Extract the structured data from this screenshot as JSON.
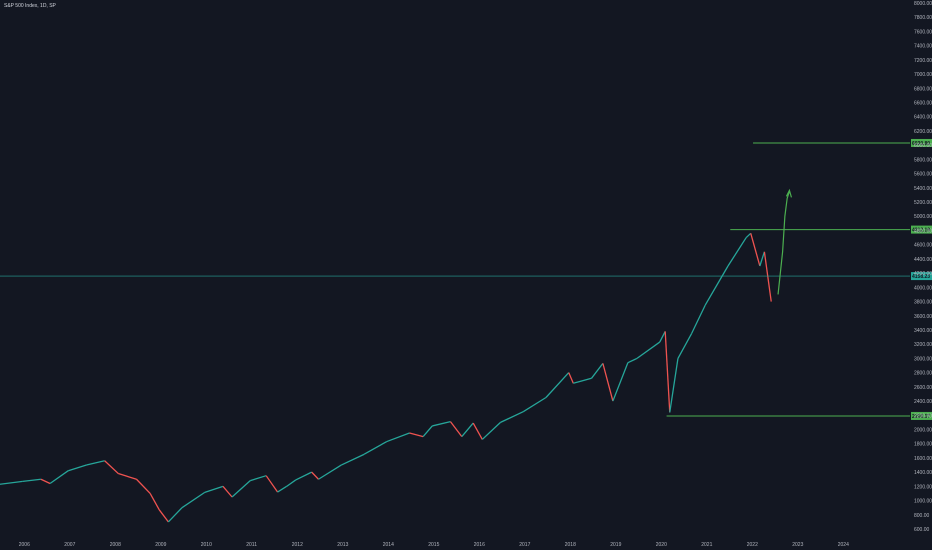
{
  "chart_title": "S&P 500 Index, 1D, SP",
  "colors": {
    "background": "#131722",
    "up": "#26a69a",
    "down": "#ef5350",
    "level_line": "#4caf50",
    "current_line": "#26a69a",
    "arrow": "#4caf50",
    "axis_text": "#b2b5be"
  },
  "chart_data": {
    "type": "line",
    "title": "S&P 500 Index, 1D, SP",
    "xlim": [
      2005.5,
      2025.5
    ],
    "ylim": [
      600,
      8000
    ],
    "y_ticks": [
      600,
      800,
      1000,
      1200,
      1400,
      1600,
      1800,
      2000,
      2200,
      2400,
      2600,
      2800,
      3000,
      3200,
      3400,
      3600,
      3800,
      4000,
      4200,
      4400,
      4600,
      4800,
      5000,
      5200,
      5400,
      5600,
      5800,
      6000,
      6200,
      6400,
      6600,
      6800,
      7000,
      7200,
      7400,
      7600,
      7800,
      8000
    ],
    "x_ticks": [
      "2006",
      "2007",
      "2008",
      "2009",
      "2010",
      "2011",
      "2012",
      "2013",
      "2014",
      "2015",
      "2016",
      "2017",
      "2018",
      "2019",
      "2020",
      "2021",
      "2022",
      "2023",
      "2024"
    ],
    "series": [
      {
        "x": [
          2005.5,
          2006.0,
          2006.4,
          2006.6,
          2007.0,
          2007.4,
          2007.8,
          2008.1,
          2008.5,
          2008.8,
          2009.0,
          2009.2,
          2009.5,
          2010.0,
          2010.4,
          2010.6,
          2011.0,
          2011.35,
          2011.6,
          2011.8,
          2012.0,
          2012.35,
          2012.5,
          2013.0,
          2013.5,
          2014.0,
          2014.5,
          2014.8,
          2015.0,
          2015.4,
          2015.65,
          2015.9,
          2016.1,
          2016.5,
          2017.0,
          2017.5,
          2018.0,
          2018.1,
          2018.5,
          2018.75,
          2018.97,
          2019.3,
          2019.5,
          2020.0,
          2020.12,
          2020.22,
          2020.4,
          2020.7,
          2021.0,
          2021.5,
          2021.9,
          2022.0,
          2022.2,
          2022.3,
          2022.45
        ],
        "y": [
          1230,
          1270,
          1300,
          1240,
          1420,
          1500,
          1560,
          1380,
          1300,
          1100,
          870,
          700,
          900,
          1115,
          1200,
          1050,
          1280,
          1350,
          1120,
          1200,
          1290,
          1400,
          1300,
          1500,
          1650,
          1830,
          1950,
          1900,
          2050,
          2110,
          1900,
          2090,
          1860,
          2100,
          2250,
          2450,
          2800,
          2650,
          2720,
          2930,
          2400,
          2940,
          3000,
          3230,
          3380,
          2240,
          3000,
          3350,
          3750,
          4300,
          4700,
          4760,
          4300,
          4500,
          3800
        ]
      }
    ],
    "levels": [
      {
        "value": 6030.8,
        "label": "6030.80"
      },
      {
        "value": 4812.19,
        "label": "4812.19"
      },
      {
        "value": 2190.37,
        "label": "2190.37"
      }
    ],
    "current_price": {
      "value": 4158.23,
      "label": "4158.23"
    },
    "projection": {
      "x": [
        2022.6,
        2022.7,
        2022.75,
        2022.8,
        2022.85
      ],
      "y": [
        3900,
        4500,
        5000,
        5250,
        5350
      ]
    }
  }
}
